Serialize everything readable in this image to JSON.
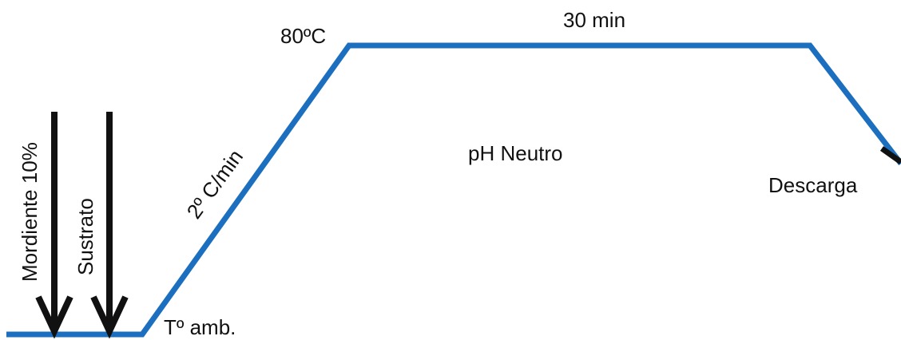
{
  "labels": {
    "mordiente": "Mordiente 10%",
    "sustrato": "Sustrato",
    "ramp": "2º C/min",
    "top_temp": "80ºC",
    "hold_time": "30 min",
    "ph": "pH Neutro",
    "start_temp": "Tº amb.",
    "discharge": "Descarga"
  },
  "colors": {
    "curve": "#1c6fbf",
    "arrows": "#111111"
  }
}
